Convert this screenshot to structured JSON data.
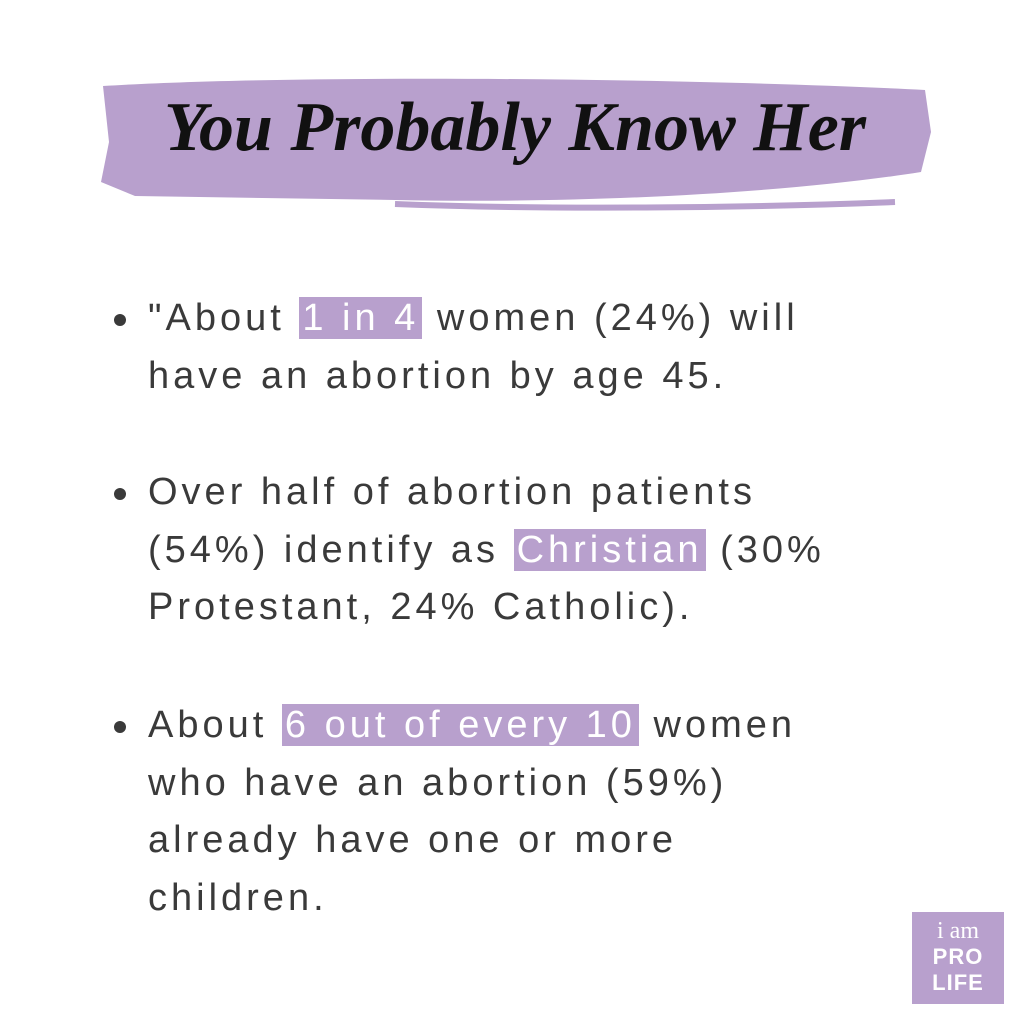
{
  "title": "You Probably Know Her",
  "bullets": [
    {
      "lines": [
        [
          {
            "text": "\"About "
          },
          {
            "text": "1 in 4",
            "highlight": true
          },
          {
            "text": " women (24%) will"
          }
        ],
        [
          {
            "text": "have an abortion by age 45."
          }
        ]
      ]
    },
    {
      "lines": [
        [
          {
            "text": "Over half of abortion patients"
          }
        ],
        [
          {
            "text": "(54%) identify as "
          },
          {
            "text": "Christian",
            "highlight": true
          },
          {
            "text": " (30%"
          }
        ],
        [
          {
            "text": "Protestant, 24% Catholic)."
          }
        ]
      ]
    },
    {
      "lines": [
        [
          {
            "text": "About "
          },
          {
            "text": "6 out of every 10",
            "highlight": true
          },
          {
            "text": " women"
          }
        ],
        [
          {
            "text": "who have an abortion (59%)"
          }
        ],
        [
          {
            "text": "already have one or more"
          }
        ],
        [
          {
            "text": "children."
          }
        ]
      ]
    }
  ],
  "logo": {
    "lines": [
      "i am",
      "PRO",
      "LIFE"
    ]
  }
}
